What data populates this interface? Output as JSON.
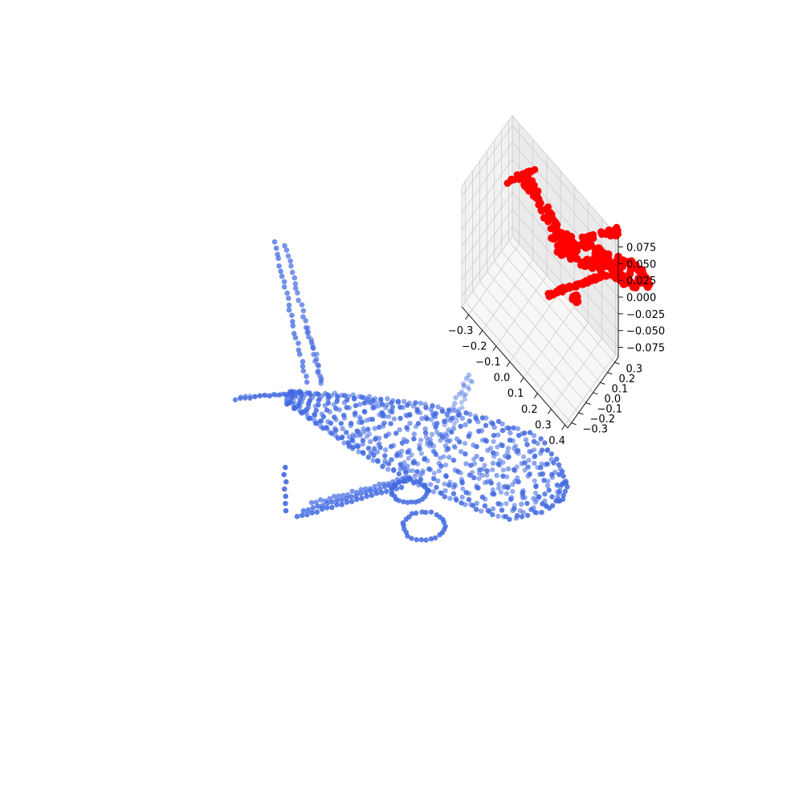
{
  "chart_data": [
    {
      "type": "scatter",
      "subtype": "3d-point-cloud",
      "title": "",
      "axes_visible": false,
      "grid": false,
      "series": [
        {
          "color": "#4169E1",
          "alpha": 0.8,
          "shape": "airplane"
        }
      ]
    },
    {
      "type": "scatter",
      "subtype": "3d-point-cloud",
      "title": "",
      "axes_visible": true,
      "grid": true,
      "pane_color": "#f2f2f2",
      "grid_color": "#cccccc",
      "x": {
        "label": "",
        "range": [
          -0.35,
          0.42
        ],
        "ticks": [
          -0.3,
          -0.2,
          -0.1,
          0.0,
          0.1,
          0.2,
          0.3,
          0.4
        ],
        "tick_labels": [
          "−0.3",
          "−0.2",
          "−0.1",
          "0.0",
          "0.1",
          "0.2",
          "0.3",
          "0.4"
        ]
      },
      "y": {
        "label": "",
        "range": [
          -0.35,
          0.35
        ],
        "ticks": [
          -0.3,
          -0.2,
          -0.1,
          0.0,
          0.1,
          0.2,
          0.3
        ],
        "tick_labels": [
          "−0.3",
          "−0.2",
          "−0.1",
          "0.0",
          "0.1",
          "0.2",
          "0.3"
        ]
      },
      "z": {
        "label": "",
        "range": [
          -0.09,
          0.09
        ],
        "ticks": [
          -0.075,
          -0.05,
          -0.025,
          0.0,
          0.025,
          0.05,
          0.075
        ],
        "tick_labels": [
          "−0.075",
          "−0.050",
          "−0.025",
          "0.000",
          "0.025",
          "0.050",
          "0.075"
        ]
      },
      "series": [
        {
          "color": "#ff0000",
          "alpha": 1.0,
          "shape": "airplane"
        }
      ]
    }
  ]
}
